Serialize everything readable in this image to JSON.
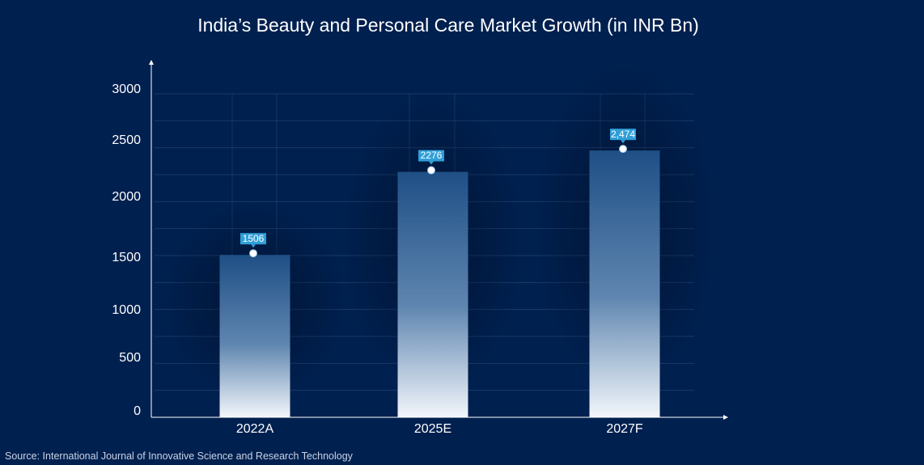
{
  "chart_data": {
    "type": "bar",
    "title": "India’s Beauty and Personal Care Market Growth (in INR Bn)",
    "categories": [
      "2022A",
      "2025E",
      "2027F"
    ],
    "values": [
      1506,
      2276,
      2474
    ],
    "data_labels": [
      "1506",
      "2276",
      "2,474"
    ],
    "ylim": [
      0,
      3000
    ],
    "y_ticks": [
      {
        "value": 0,
        "label": "0"
      },
      {
        "value": 500,
        "label": "500"
      },
      {
        "value": 1000,
        "label": "1000"
      },
      {
        "value": 1500,
        "label": "1500"
      },
      {
        "value": 2000,
        "label": "2000"
      },
      {
        "value": 2500,
        "label": "2500"
      },
      {
        "value": 3000,
        "label": "3000"
      }
    ],
    "xlabel": "",
    "ylabel": "",
    "grid": true,
    "legend": "none"
  },
  "source": "Source: International Journal of Innovative Science and Research Technology",
  "colors": {
    "background": "#00204f",
    "label_box": "#2f9fd8",
    "bar_top": "#1f4f86",
    "bar_bottom": "#f2f6fb"
  }
}
